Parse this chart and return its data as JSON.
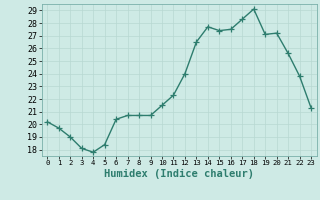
{
  "x": [
    0,
    1,
    2,
    3,
    4,
    5,
    6,
    7,
    8,
    9,
    10,
    11,
    12,
    13,
    14,
    15,
    16,
    17,
    18,
    19,
    20,
    21,
    22,
    23
  ],
  "y": [
    20.2,
    19.7,
    19.0,
    18.1,
    17.8,
    18.4,
    20.4,
    20.7,
    20.7,
    20.7,
    21.5,
    22.3,
    24.0,
    26.5,
    27.7,
    27.4,
    27.5,
    28.3,
    29.1,
    27.1,
    27.2,
    25.6,
    23.8,
    21.3
  ],
  "line_color": "#2e7d6e",
  "marker": "+",
  "marker_size": 4,
  "linewidth": 1.0,
  "xlabel": "Humidex (Indice chaleur)",
  "xlim": [
    -0.5,
    23.5
  ],
  "ylim": [
    17.5,
    29.5
  ],
  "yticks": [
    18,
    19,
    20,
    21,
    22,
    23,
    24,
    25,
    26,
    27,
    28,
    29
  ],
  "xticks": [
    0,
    1,
    2,
    3,
    4,
    5,
    6,
    7,
    8,
    9,
    10,
    11,
    12,
    13,
    14,
    15,
    16,
    17,
    18,
    19,
    20,
    21,
    22,
    23
  ],
  "bg_color": "#ceeae5",
  "grid_color": "#b8d8d2",
  "xlabel_fontsize": 7.5,
  "tick_fontsize": 6.0
}
